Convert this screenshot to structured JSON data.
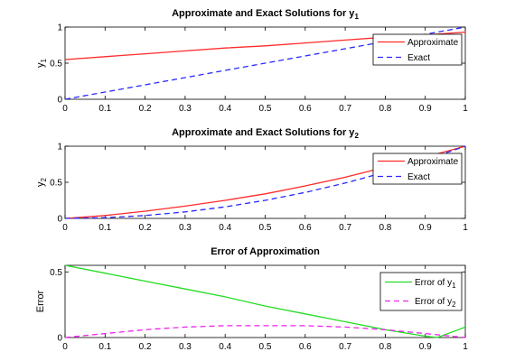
{
  "chart_data": [
    {
      "type": "line",
      "title": "Approximate and Exact Solutions for y",
      "title_sub": "1",
      "ylabel": "y",
      "ylabel_sub": "1",
      "xlim": [
        0,
        1
      ],
      "ylim": [
        0,
        1
      ],
      "xticks": [
        "0",
        "0.1",
        "0.2",
        "0.3",
        "0.4",
        "0.5",
        "0.6",
        "0.7",
        "0.8",
        "0.9",
        "1"
      ],
      "yticks": [
        "0",
        "0.5",
        "1"
      ],
      "grid": false,
      "legend_position": "top-right",
      "series": [
        {
          "name": "Approximate",
          "color": "#ff2a2a",
          "style": "solid",
          "x": [
            0,
            0.1,
            0.2,
            0.3,
            0.4,
            0.5,
            0.6,
            0.7,
            0.8,
            0.9,
            1
          ],
          "y": [
            0.55,
            0.59,
            0.63,
            0.67,
            0.71,
            0.74,
            0.78,
            0.82,
            0.86,
            0.89,
            0.93
          ]
        },
        {
          "name": "Exact",
          "color": "#2a2aff",
          "style": "dashed",
          "x": [
            0,
            0.1,
            0.2,
            0.3,
            0.4,
            0.5,
            0.6,
            0.7,
            0.8,
            0.9,
            1
          ],
          "y": [
            0,
            0.1,
            0.2,
            0.3,
            0.4,
            0.5,
            0.6,
            0.7,
            0.8,
            0.9,
            1
          ]
        }
      ]
    },
    {
      "type": "line",
      "title": "Approximate and Exact Solutions for y",
      "title_sub": "2",
      "ylabel": "y",
      "ylabel_sub": "2",
      "xlim": [
        0,
        1
      ],
      "ylim": [
        0,
        1
      ],
      "xticks": [
        "0",
        "0.1",
        "0.2",
        "0.3",
        "0.4",
        "0.5",
        "0.6",
        "0.7",
        "0.8",
        "0.9",
        "1"
      ],
      "yticks": [
        "0",
        "0.5",
        "1"
      ],
      "grid": false,
      "legend_position": "top-right",
      "series": [
        {
          "name": "Approximate",
          "color": "#ff2a2a",
          "style": "solid",
          "x": [
            0,
            0.1,
            0.2,
            0.3,
            0.4,
            0.5,
            0.6,
            0.7,
            0.8,
            0.9,
            1
          ],
          "y": [
            0,
            0.04,
            0.1,
            0.17,
            0.25,
            0.34,
            0.45,
            0.57,
            0.71,
            0.85,
            1
          ]
        },
        {
          "name": "Exact",
          "color": "#2a2aff",
          "style": "dashed",
          "x": [
            0,
            0.1,
            0.2,
            0.3,
            0.4,
            0.5,
            0.6,
            0.7,
            0.8,
            0.9,
            1
          ],
          "y": [
            0,
            0.01,
            0.04,
            0.09,
            0.16,
            0.25,
            0.36,
            0.49,
            0.64,
            0.81,
            1
          ]
        }
      ]
    },
    {
      "type": "line",
      "title": "Error of Approximation",
      "title_sub": "",
      "ylabel": "Error",
      "ylabel_sub": "",
      "xlim": [
        0,
        1
      ],
      "ylim": [
        0,
        0.55
      ],
      "xticks": [
        "0",
        "0.1",
        "0.2",
        "0.3",
        "0.4",
        "0.5",
        "0.6",
        "0.7",
        "0.8",
        "0.9",
        "1"
      ],
      "yticks": [
        "0",
        "0.5"
      ],
      "grid": false,
      "legend_position": "top-right",
      "series": [
        {
          "name": "Error of y",
          "name_sub": "1",
          "color": "#22dd22",
          "style": "solid",
          "x": [
            0,
            0.1,
            0.2,
            0.3,
            0.4,
            0.5,
            0.6,
            0.7,
            0.8,
            0.9,
            0.93,
            1
          ],
          "y": [
            0.55,
            0.49,
            0.43,
            0.37,
            0.31,
            0.24,
            0.18,
            0.12,
            0.06,
            0.01,
            0.0,
            0.08
          ]
        },
        {
          "name": "Error of y",
          "name_sub": "2",
          "color": "#ee22ee",
          "style": "dashed",
          "x": [
            0,
            0.1,
            0.2,
            0.3,
            0.4,
            0.5,
            0.6,
            0.7,
            0.8,
            0.9,
            1
          ],
          "y": [
            0,
            0.03,
            0.06,
            0.08,
            0.09,
            0.09,
            0.09,
            0.08,
            0.06,
            0.03,
            0
          ]
        }
      ]
    }
  ]
}
